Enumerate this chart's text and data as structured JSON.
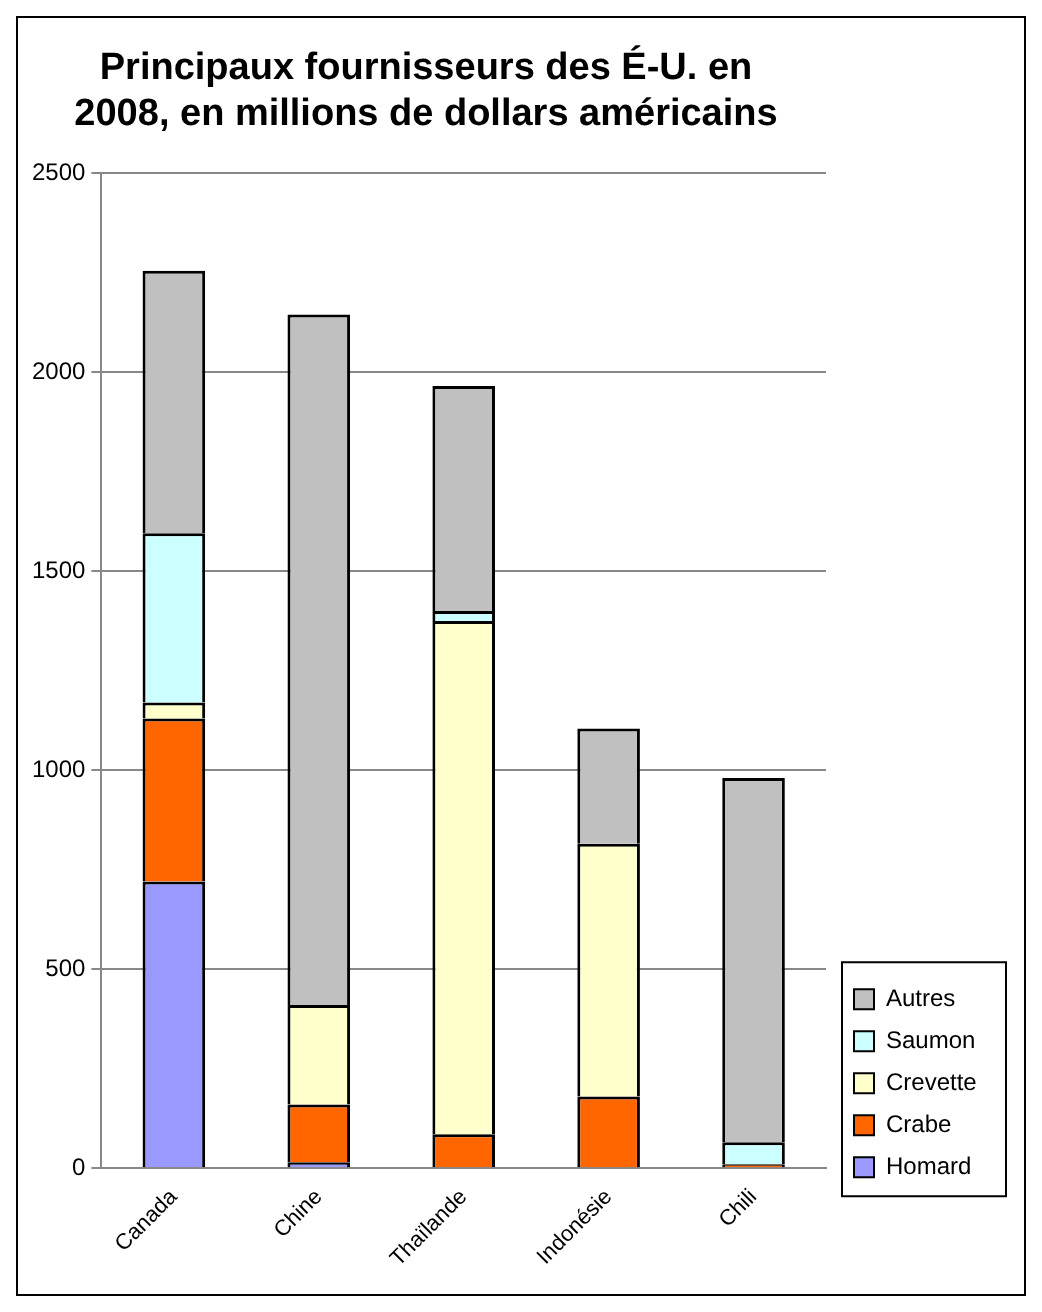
{
  "chart_data": {
    "type": "bar",
    "title": "Principaux fournisseurs des É-U. en 2008, en millions de dollars américains",
    "categories": [
      "Canada",
      "Chine",
      "Thaïlande",
      "Indonésie",
      "Chili"
    ],
    "stacked": true,
    "ylim": [
      0,
      2500
    ],
    "yticks": [
      0,
      500,
      1000,
      1500,
      2000,
      2500
    ],
    "grid": "y",
    "legend": "bottom right",
    "series": [
      {
        "name": "Homard",
        "color": "#9999ff",
        "values": [
          720,
          15,
          0,
          0,
          0
        ]
      },
      {
        "name": "Crabe",
        "color": "#ff6600",
        "values": [
          410,
          145,
          85,
          180,
          10
        ]
      },
      {
        "name": "Crevette",
        "color": "#ffffcc",
        "values": [
          40,
          250,
          1290,
          635,
          0
        ]
      },
      {
        "name": "Saumon",
        "color": "#ccffff",
        "values": [
          425,
          null,
          25,
          0,
          55
        ]
      },
      {
        "name": "Autres",
        "color": "#c0c0c0",
        "values": [
          660,
          1735,
          565,
          290,
          915
        ]
      }
    ]
  }
}
